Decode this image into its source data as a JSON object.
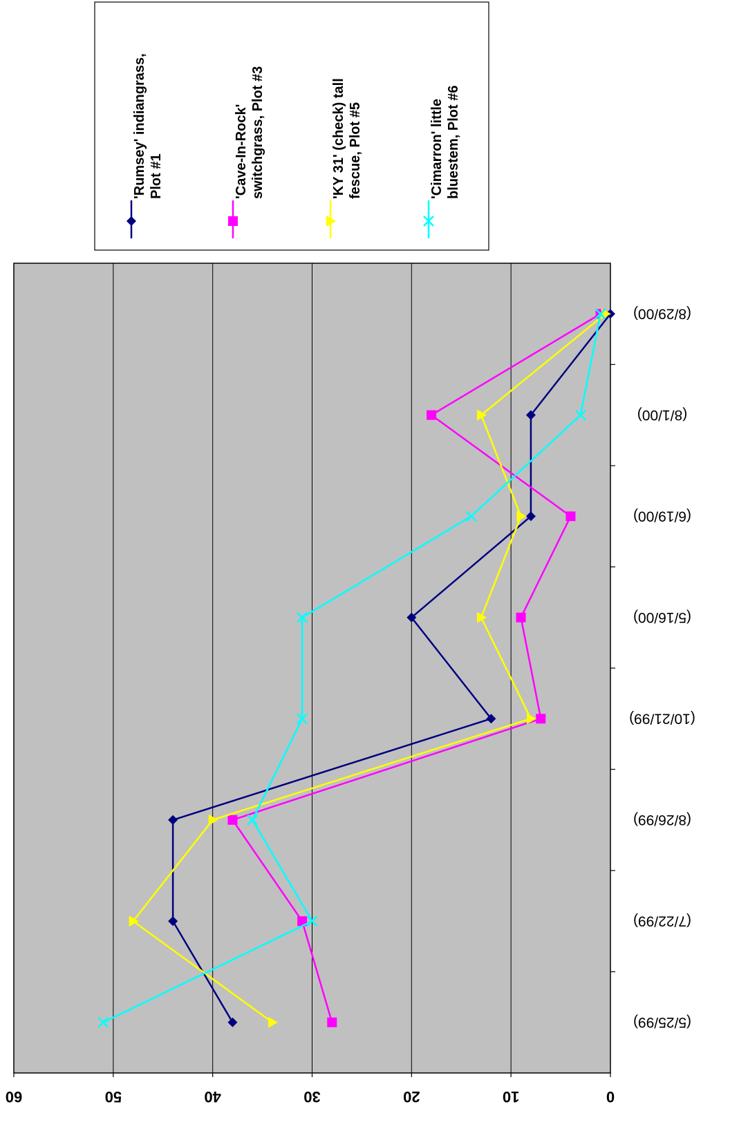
{
  "chart_data": {
    "type": "line",
    "categories": [
      "(5/25/99)",
      "(7/22/99)",
      "(8/26/99)",
      "(10/21/99)",
      "(5/16/00)",
      "(6/19/00)",
      "(8/1/00)",
      "(8/29/00)"
    ],
    "series": [
      {
        "name": "'Rumsey' indiangrass, Plot #1",
        "color": "#000080",
        "marker": "diamond",
        "values": [
          38,
          44,
          44,
          12,
          20,
          8,
          8,
          0
        ]
      },
      {
        "name": "'Cave-In-Rock' switchgrass, Plot #3",
        "color": "#FF00FF",
        "marker": "square",
        "values": [
          28,
          31,
          38,
          7,
          9,
          4,
          18,
          1
        ]
      },
      {
        "name": "'KY 31' (check) tall fescue, Plot #5",
        "color": "#FFFF00",
        "marker": "triangle",
        "values": [
          34,
          48,
          40,
          8,
          13,
          9,
          13,
          0.5
        ]
      },
      {
        "name": "'Cimarron' little bluestem, Plot #6",
        "color": "#00FFFF",
        "marker": "x",
        "values": [
          51,
          30,
          36,
          31,
          31,
          14,
          3,
          1
        ]
      }
    ],
    "ylim": [
      0,
      60
    ],
    "yticks": [
      "0",
      "10",
      "20",
      "30",
      "40",
      "50",
      "60"
    ],
    "grid": true,
    "plot_background": "#C0C0C0",
    "legend_position": "right",
    "orientation": "rotated 180 degrees"
  }
}
